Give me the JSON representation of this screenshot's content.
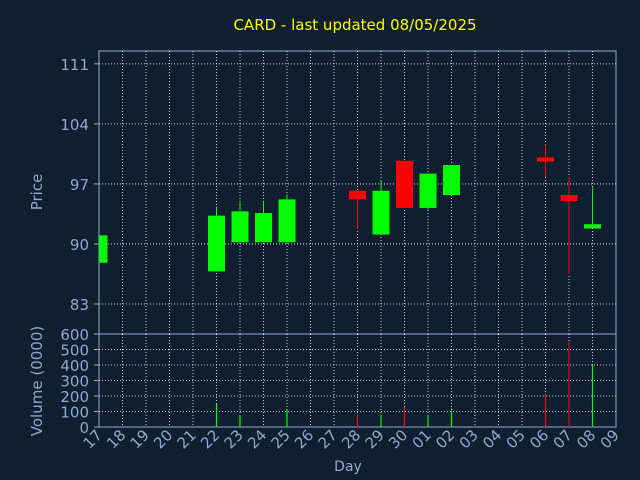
{
  "colors": {
    "background": "#0f1f30",
    "plot_background": "#0f1f30",
    "grid": "#ffffff",
    "axis_text": "#8fa8cf",
    "title": "#ffff00",
    "up": "#00ff00",
    "down": "#ff0000"
  },
  "chart_data": {
    "type": "candlestick",
    "title": "CARD - last updated 08/05/2025",
    "xlabel": "Day",
    "price_panel": {
      "ylabel": "Price",
      "ylim": [
        79.5,
        112.5
      ],
      "yticks": [
        83,
        90,
        97,
        104,
        111
      ],
      "grid": true
    },
    "volume_panel": {
      "ylabel": "Volume (0000)",
      "ylim": [
        0,
        600
      ],
      "yticks": [
        0,
        100,
        200,
        300,
        400,
        500,
        600
      ],
      "grid": true
    },
    "x_tick_labels": [
      "17",
      "18",
      "19",
      "20",
      "21",
      "22",
      "23",
      "24",
      "25",
      "26",
      "27",
      "28",
      "29",
      "30",
      "01",
      "02",
      "03",
      "04",
      "05",
      "06",
      "07",
      "08",
      "09"
    ],
    "candles": [
      {
        "day": "17",
        "open": 87.8,
        "high": 91.0,
        "low": 87.8,
        "close": 91.0,
        "volume": 0
      },
      {
        "day": "22",
        "open": 86.8,
        "high": 94.3,
        "low": 86.8,
        "close": 93.3,
        "volume": 150
      },
      {
        "day": "23",
        "open": 90.2,
        "high": 94.8,
        "low": 90.2,
        "close": 93.8,
        "volume": 75
      },
      {
        "day": "24",
        "open": 90.2,
        "high": 95.0,
        "low": 90.2,
        "close": 93.6,
        "volume": 0
      },
      {
        "day": "25",
        "open": 90.2,
        "high": 95.8,
        "low": 90.2,
        "close": 95.2,
        "volume": 115
      },
      {
        "day": "28",
        "open": 96.2,
        "high": 96.2,
        "low": 91.7,
        "close": 95.2,
        "volume": 80
      },
      {
        "day": "29",
        "open": 91.1,
        "high": 97.4,
        "low": 91.1,
        "close": 96.2,
        "volume": 80
      },
      {
        "day": "30",
        "open": 99.7,
        "high": 99.7,
        "low": 94.2,
        "close": 94.2,
        "volume": 130
      },
      {
        "day": "01",
        "open": 94.2,
        "high": 98.2,
        "low": 94.0,
        "close": 98.2,
        "volume": 75
      },
      {
        "day": "02",
        "open": 95.7,
        "high": 99.2,
        "low": 95.7,
        "close": 99.2,
        "volume": 105
      },
      {
        "day": "06",
        "open": 100.1,
        "high": 101.6,
        "low": 97.8,
        "close": 99.6,
        "volume": 210
      },
      {
        "day": "07",
        "open": 95.7,
        "high": 97.8,
        "low": 86.5,
        "close": 95.0,
        "volume": 550
      },
      {
        "day": "08",
        "open": 91.8,
        "high": 96.6,
        "low": 91.8,
        "close": 92.3,
        "volume": 405
      }
    ]
  }
}
